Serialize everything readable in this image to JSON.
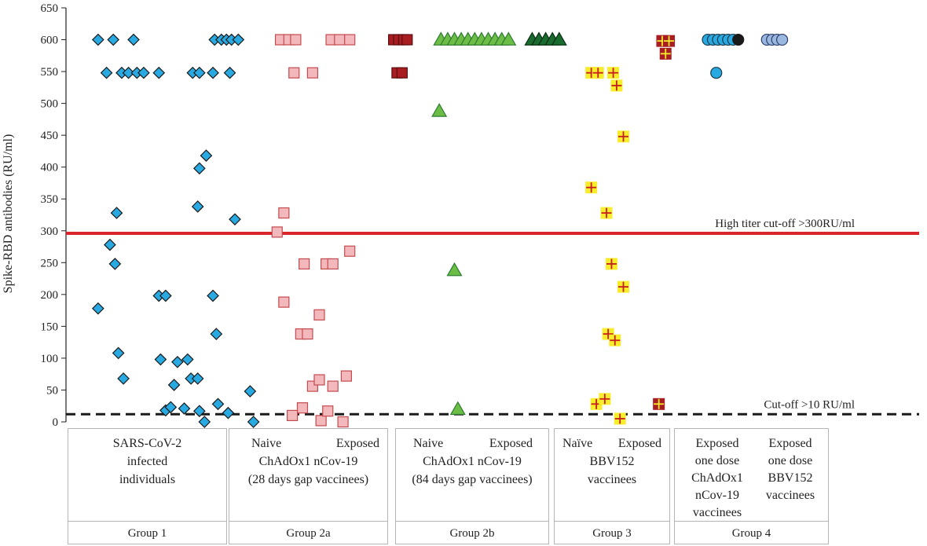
{
  "chart_data": {
    "type": "scatter",
    "ylabel": "Spike-RBD antibodies (RU/ml)",
    "ylim": [
      0,
      650
    ],
    "yticks": [
      0,
      50,
      100,
      150,
      200,
      250,
      300,
      350,
      400,
      450,
      500,
      550,
      600,
      650
    ],
    "grid": false,
    "reference_lines": [
      {
        "label": "High titer cut-off  >300RU/ml",
        "y": 296,
        "style": "solid",
        "color": "#d9262b"
      },
      {
        "label": "Cut-off >10 RU/ml",
        "y": 12,
        "style": "dashed",
        "color": "#1a1a1a"
      }
    ],
    "series": [
      {
        "group": "Group 1",
        "marker": "diamond",
        "fill": "#29a9e1",
        "stroke": "#1a1a1a",
        "points": [
          [
            1.9,
            600
          ],
          [
            2.8,
            600
          ],
          [
            4.0,
            600
          ],
          [
            2.4,
            548
          ],
          [
            3.3,
            548
          ],
          [
            3.7,
            548
          ],
          [
            4.2,
            548
          ],
          [
            4.6,
            548
          ],
          [
            5.5,
            548
          ],
          [
            7.5,
            548
          ],
          [
            7.9,
            548
          ],
          [
            8.7,
            548
          ],
          [
            9.7,
            548
          ],
          [
            8.8,
            600
          ],
          [
            9.2,
            600
          ],
          [
            9.5,
            600
          ],
          [
            9.8,
            600
          ],
          [
            10.2,
            600
          ],
          [
            3.0,
            328
          ],
          [
            7.8,
            338
          ],
          [
            7.9,
            398
          ],
          [
            8.3,
            418
          ],
          [
            10.0,
            318
          ],
          [
            2.6,
            278
          ],
          [
            2.9,
            248
          ],
          [
            1.9,
            178
          ],
          [
            5.5,
            198
          ],
          [
            5.9,
            198
          ],
          [
            8.7,
            198
          ],
          [
            8.9,
            138
          ],
          [
            3.1,
            108
          ],
          [
            3.4,
            68
          ],
          [
            5.6,
            98
          ],
          [
            6.6,
            94
          ],
          [
            7.2,
            98
          ],
          [
            6.4,
            58
          ],
          [
            7.4,
            68
          ],
          [
            7.8,
            68
          ],
          [
            5.9,
            18
          ],
          [
            6.2,
            23
          ],
          [
            7.0,
            21
          ],
          [
            7.9,
            17
          ],
          [
            8.2,
            0
          ],
          [
            9.0,
            28
          ],
          [
            9.6,
            14
          ],
          [
            10.9,
            48
          ],
          [
            11.1,
            0
          ]
        ]
      },
      {
        "group": "Group 2a",
        "marker": "square",
        "fill": "#f2b8bb",
        "stroke": "#c44b4f",
        "points": [
          [
            12.7,
            600
          ],
          [
            13.2,
            600
          ],
          [
            13.6,
            600
          ],
          [
            15.7,
            600
          ],
          [
            16.2,
            600
          ],
          [
            16.8,
            600
          ],
          [
            13.5,
            548
          ],
          [
            14.6,
            548
          ],
          [
            12.5,
            298
          ],
          [
            12.9,
            328
          ],
          [
            12.9,
            188
          ],
          [
            14.1,
            248
          ],
          [
            15.4,
            248
          ],
          [
            15.8,
            248
          ],
          [
            16.8,
            268
          ],
          [
            13.9,
            138
          ],
          [
            14.3,
            138
          ],
          [
            15.0,
            168
          ],
          [
            14.0,
            22
          ],
          [
            14.6,
            56
          ],
          [
            15.0,
            66
          ],
          [
            15.8,
            56
          ],
          [
            16.6,
            72
          ],
          [
            13.4,
            10
          ],
          [
            15.1,
            2
          ],
          [
            15.5,
            17
          ],
          [
            16.4,
            0
          ]
        ]
      },
      {
        "group": "Group 2b",
        "marker": "triangle",
        "fill": "#6cbd45",
        "stroke": "#2e7d32",
        "points": [
          [
            22.2,
            600
          ],
          [
            22.6,
            600
          ],
          [
            23.0,
            600
          ],
          [
            23.4,
            600
          ],
          [
            23.8,
            600
          ],
          [
            24.2,
            600
          ],
          [
            24.6,
            600
          ],
          [
            25.0,
            600
          ],
          [
            25.4,
            600
          ],
          [
            25.8,
            600
          ],
          [
            26.2,
            600
          ],
          [
            22.1,
            488
          ],
          [
            23.0,
            238
          ],
          [
            23.2,
            20
          ]
        ]
      },
      {
        "group": "Group 2b",
        "marker": "triangle",
        "fill": "#1a6b2e",
        "stroke": "#0b2e14",
        "points": [
          [
            27.6,
            600
          ],
          [
            28.0,
            600
          ],
          [
            28.4,
            600
          ],
          [
            28.8,
            600
          ],
          [
            29.2,
            600
          ]
        ]
      },
      {
        "group": "Group 2a",
        "marker": "square",
        "fill": "#a81d22",
        "stroke": "#5e0d10",
        "points": [
          [
            19.4,
            600
          ],
          [
            19.7,
            600
          ],
          [
            20.0,
            600
          ],
          [
            20.2,
            600
          ],
          [
            19.6,
            548
          ],
          [
            19.9,
            548
          ]
        ]
      },
      {
        "group": "Group 3",
        "marker": "square-plus",
        "fill": "#f7ed2b",
        "stroke": "#c81e1e",
        "points": [
          [
            31.1,
            548
          ],
          [
            31.5,
            548
          ],
          [
            32.4,
            548
          ],
          [
            32.6,
            528
          ],
          [
            33.0,
            448
          ],
          [
            31.1,
            368
          ],
          [
            32.0,
            328
          ],
          [
            32.3,
            248
          ],
          [
            33.0,
            212
          ],
          [
            32.1,
            138
          ],
          [
            32.5,
            128
          ],
          [
            31.4,
            28
          ],
          [
            31.9,
            36
          ],
          [
            32.8,
            5
          ]
        ]
      },
      {
        "group": "Group 3",
        "marker": "square-plus",
        "fill": "#a81d22",
        "stroke": "#f7ed2b",
        "points": [
          [
            35.3,
            598
          ],
          [
            35.7,
            598
          ],
          [
            35.5,
            578
          ],
          [
            35.1,
            28
          ]
        ]
      },
      {
        "group": "Group 4",
        "marker": "circle",
        "fill": "#29a9e1",
        "stroke": "#1a3a4a",
        "points": [
          [
            38.0,
            600
          ],
          [
            38.3,
            600
          ],
          [
            38.6,
            600
          ],
          [
            38.9,
            600
          ],
          [
            39.2,
            600
          ],
          [
            39.5,
            600
          ],
          [
            38.5,
            548
          ]
        ]
      },
      {
        "group": "Group 4",
        "marker": "circle",
        "fill": "#1a1a1a",
        "stroke": "#1a1a1a",
        "points": [
          [
            39.8,
            600
          ]
        ]
      },
      {
        "group": "Group 4",
        "marker": "circle",
        "fill": "#9ab8e0",
        "stroke": "#2c3e6b",
        "points": [
          [
            41.5,
            600
          ],
          [
            41.8,
            600
          ],
          [
            42.1,
            600
          ],
          [
            42.4,
            600
          ]
        ]
      }
    ],
    "group_panels": [
      {
        "name": "Group 1",
        "text_lines": [
          "SARS-CoV-2",
          "infected",
          "individuals"
        ]
      },
      {
        "name": "Group 2a",
        "top_labels": [
          "Naive",
          "Exposed"
        ],
        "text_lines": [
          "ChAdOx1  nCov-19",
          "(28 days gap vaccinees)"
        ]
      },
      {
        "name": "Group 2b",
        "top_labels": [
          "Naive",
          "Exposed"
        ],
        "text_lines": [
          "ChAdOx1  nCov-19",
          "(84 days gap vaccinees)"
        ]
      },
      {
        "name": "Group 3",
        "top_labels": [
          "Naïve",
          "Exposed"
        ],
        "text_lines": [
          "BBV152",
          "vaccinees"
        ]
      },
      {
        "name": "Group 4",
        "left_lines": [
          "Exposed",
          "one dose",
          "ChAdOx1",
          "nCov-19",
          "vaccinees"
        ],
        "right_lines": [
          "Exposed",
          "one dose",
          "BBV152",
          "vaccinees"
        ]
      }
    ]
  }
}
